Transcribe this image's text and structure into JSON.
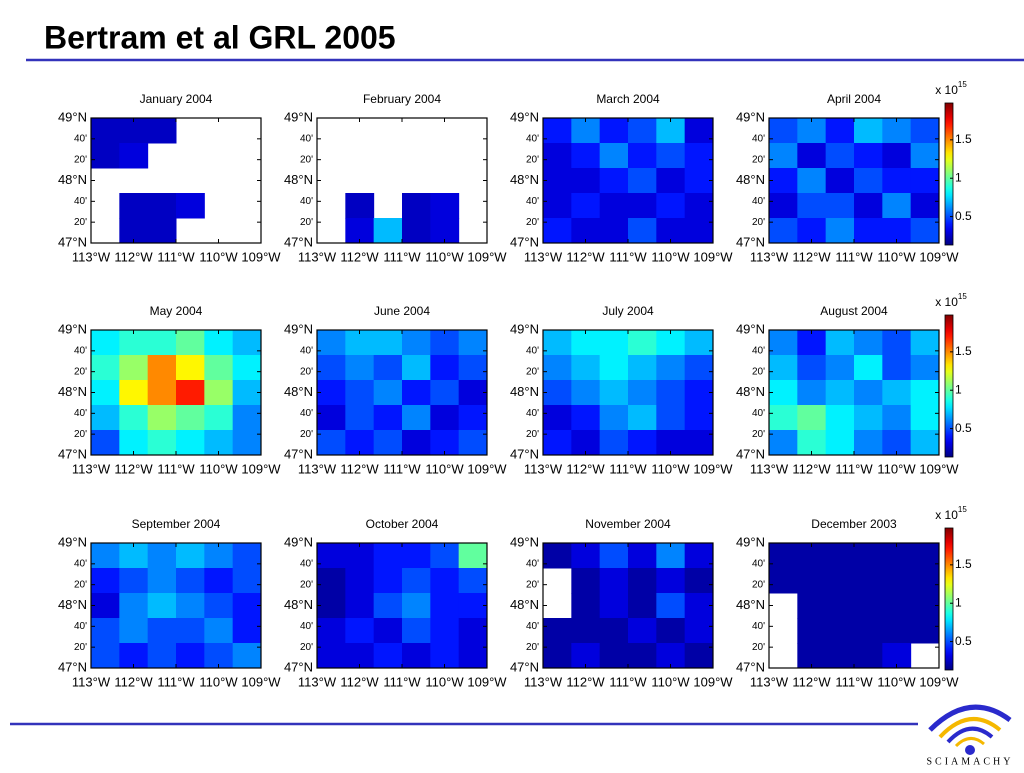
{
  "title": "Bertram et al GRL 2005",
  "map": {
    "lat_labels": [
      "49°N",
      "40'",
      "20'",
      "48°N",
      "40'",
      "20'",
      "47°N"
    ],
    "lon_labels": [
      "113°W",
      "112°W",
      "111°W",
      "110°W",
      "109°W"
    ]
  },
  "colorbar": {
    "label": "x 10",
    "exponent": "15",
    "ticks": [
      0.5,
      1,
      1.5
    ],
    "clim": [
      0.13,
      1.98
    ]
  },
  "panels": [
    {
      "title": "January 2004",
      "values": [
        [
          0.25,
          0.25,
          0.25,
          null,
          null,
          null
        ],
        [
          0.25,
          0.3,
          null,
          null,
          null,
          null
        ],
        [
          null,
          null,
          null,
          null,
          null,
          null
        ],
        [
          null,
          0.25,
          0.25,
          0.3,
          null,
          null
        ],
        [
          null,
          0.25,
          0.25,
          null,
          null,
          null
        ]
      ]
    },
    {
      "title": "February 2004",
      "values": [
        [
          null,
          null,
          null,
          null,
          null,
          null
        ],
        [
          null,
          null,
          null,
          null,
          null,
          null
        ],
        [
          null,
          null,
          null,
          null,
          null,
          null
        ],
        [
          null,
          0.25,
          null,
          0.25,
          0.3,
          null
        ],
        [
          null,
          0.3,
          0.7,
          0.25,
          0.3,
          null
        ]
      ]
    },
    {
      "title": "March 2004",
      "values": [
        [
          0.4,
          0.6,
          0.4,
          0.5,
          0.7,
          0.3
        ],
        [
          0.3,
          0.4,
          0.6,
          0.4,
          0.5,
          0.4
        ],
        [
          0.3,
          0.3,
          0.4,
          0.5,
          0.3,
          0.4
        ],
        [
          0.3,
          0.4,
          0.3,
          0.3,
          0.4,
          0.3
        ],
        [
          0.4,
          0.3,
          0.3,
          0.5,
          0.3,
          0.3
        ]
      ]
    },
    {
      "title": "April 2004",
      "values": [
        [
          0.5,
          0.6,
          0.4,
          0.7,
          0.6,
          0.5
        ],
        [
          0.6,
          0.3,
          0.5,
          0.4,
          0.3,
          0.6
        ],
        [
          0.4,
          0.6,
          0.3,
          0.5,
          0.4,
          0.4
        ],
        [
          0.3,
          0.5,
          0.5,
          0.3,
          0.6,
          0.3
        ],
        [
          0.5,
          0.4,
          0.6,
          0.4,
          0.4,
          0.5
        ]
      ]
    },
    {
      "title": "May 2004",
      "values": [
        [
          0.8,
          0.9,
          0.9,
          1.0,
          0.8,
          0.7
        ],
        [
          0.9,
          1.1,
          1.5,
          1.3,
          1.0,
          0.8
        ],
        [
          0.8,
          1.3,
          1.5,
          1.7,
          1.1,
          0.7
        ],
        [
          0.7,
          0.9,
          1.1,
          1.0,
          0.9,
          0.6
        ],
        [
          0.5,
          0.8,
          0.9,
          0.8,
          0.7,
          0.6
        ]
      ]
    },
    {
      "title": "June 2004",
      "values": [
        [
          0.6,
          0.7,
          0.7,
          0.6,
          0.5,
          0.6
        ],
        [
          0.5,
          0.6,
          0.5,
          0.7,
          0.4,
          0.5
        ],
        [
          0.4,
          0.5,
          0.6,
          0.4,
          0.5,
          0.3
        ],
        [
          0.3,
          0.5,
          0.4,
          0.6,
          0.3,
          0.4
        ],
        [
          0.5,
          0.4,
          0.5,
          0.3,
          0.4,
          0.5
        ]
      ]
    },
    {
      "title": "July 2004",
      "values": [
        [
          0.7,
          0.8,
          0.8,
          0.9,
          0.8,
          0.7
        ],
        [
          0.6,
          0.7,
          0.8,
          0.7,
          0.6,
          0.5
        ],
        [
          0.5,
          0.6,
          0.7,
          0.6,
          0.5,
          0.4
        ],
        [
          0.3,
          0.4,
          0.6,
          0.7,
          0.5,
          0.4
        ],
        [
          0.4,
          0.3,
          0.5,
          0.4,
          0.3,
          0.3
        ]
      ]
    },
    {
      "title": "August 2004",
      "values": [
        [
          0.6,
          0.4,
          0.7,
          0.6,
          0.5,
          0.7
        ],
        [
          0.7,
          0.5,
          0.6,
          0.8,
          0.5,
          0.6
        ],
        [
          0.8,
          0.6,
          0.7,
          0.6,
          0.7,
          0.8
        ],
        [
          0.9,
          1.0,
          0.8,
          0.7,
          0.6,
          0.8
        ],
        [
          0.6,
          0.9,
          0.8,
          0.6,
          0.5,
          0.7
        ]
      ]
    },
    {
      "title": "September 2004",
      "values": [
        [
          0.6,
          0.7,
          0.6,
          0.7,
          0.6,
          0.5
        ],
        [
          0.4,
          0.5,
          0.6,
          0.5,
          0.4,
          0.5
        ],
        [
          0.3,
          0.6,
          0.7,
          0.6,
          0.5,
          0.4
        ],
        [
          0.5,
          0.6,
          0.5,
          0.5,
          0.6,
          0.4
        ],
        [
          0.5,
          0.4,
          0.5,
          0.4,
          0.5,
          0.6
        ]
      ]
    },
    {
      "title": "October 2004",
      "values": [
        [
          0.3,
          0.3,
          0.4,
          0.4,
          0.5,
          1.0
        ],
        [
          0.2,
          0.3,
          0.4,
          0.5,
          0.4,
          0.5
        ],
        [
          0.2,
          0.3,
          0.5,
          0.6,
          0.4,
          0.4
        ],
        [
          0.3,
          0.4,
          0.3,
          0.5,
          0.4,
          0.3
        ],
        [
          0.3,
          0.3,
          0.4,
          0.3,
          0.4,
          0.3
        ]
      ]
    },
    {
      "title": "November 2004",
      "values": [
        [
          0.2,
          0.3,
          0.5,
          0.3,
          0.6,
          0.3
        ],
        [
          null,
          0.2,
          0.3,
          0.2,
          0.3,
          0.2
        ],
        [
          null,
          0.2,
          0.3,
          0.2,
          0.5,
          0.3
        ],
        [
          0.2,
          0.2,
          0.2,
          0.3,
          0.2,
          0.3
        ],
        [
          0.2,
          0.3,
          0.2,
          0.2,
          0.3,
          0.2
        ]
      ]
    },
    {
      "title": "December 2003",
      "values": [
        [
          0.2,
          0.2,
          0.2,
          0.2,
          0.2,
          0.2
        ],
        [
          0.2,
          0.2,
          0.2,
          0.2,
          0.2,
          0.2
        ],
        [
          null,
          0.2,
          0.2,
          0.2,
          0.2,
          0.2
        ],
        [
          null,
          0.2,
          0.2,
          0.2,
          0.2,
          0.2
        ],
        [
          null,
          0.2,
          0.2,
          0.2,
          0.3,
          null
        ]
      ]
    }
  ],
  "logo": "SCIAMACHY"
}
